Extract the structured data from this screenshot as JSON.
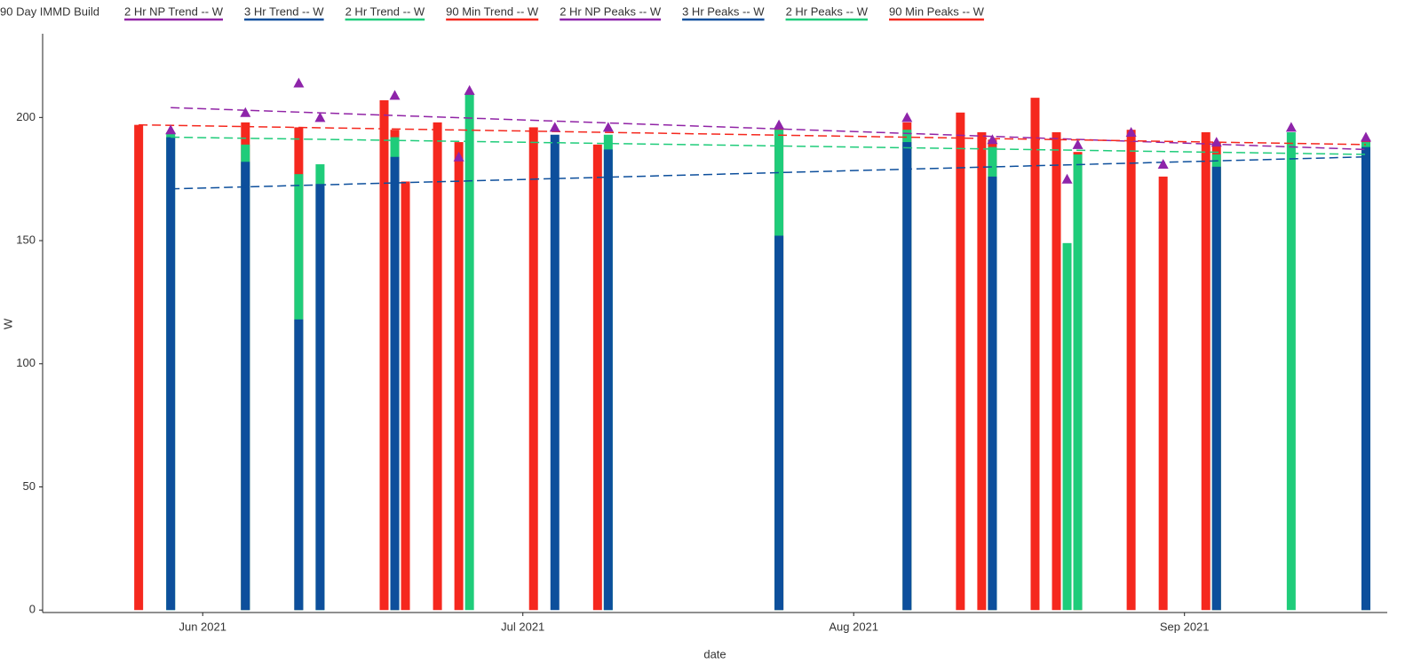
{
  "chart_data": {
    "type": "bar",
    "legend_title": "90 Day IMMD Build",
    "x_label": "date",
    "y_label": "W",
    "x": [
      "2021-05-26",
      "2021-05-29",
      "2021-06-05",
      "2021-06-10",
      "2021-06-12",
      "2021-06-18",
      "2021-06-19",
      "2021-06-20",
      "2021-06-23",
      "2021-06-25",
      "2021-06-26",
      "2021-07-02",
      "2021-07-04",
      "2021-07-08",
      "2021-07-09",
      "2021-07-25",
      "2021-08-06",
      "2021-08-11",
      "2021-08-13",
      "2021-08-14",
      "2021-08-18",
      "2021-08-20",
      "2021-08-21",
      "2021-08-22",
      "2021-08-27",
      "2021-08-30",
      "2021-09-03",
      "2021-09-04",
      "2021-09-11",
      "2021-09-18"
    ],
    "series": [
      {
        "name": "2 Hr NP Trend  -- W",
        "kind": "line",
        "dashed": true,
        "color": "#9124a6",
        "x": [
          "2021-05-29",
          "2021-09-18"
        ],
        "values": [
          204,
          187
        ]
      },
      {
        "name": "3 Hr Trend  -- W",
        "kind": "line",
        "dashed": true,
        "color": "#0d4f9c",
        "x": [
          "2021-05-29",
          "2021-09-18"
        ],
        "values": [
          171,
          184
        ]
      },
      {
        "name": "2 Hr Trend  -- W",
        "kind": "line",
        "dashed": true,
        "color": "#1fcc7a",
        "x": [
          "2021-05-29",
          "2021-09-18"
        ],
        "values": [
          192,
          185
        ]
      },
      {
        "name": "90 Min Trend  -- W",
        "kind": "line",
        "dashed": true,
        "color": "#f5281e",
        "x": [
          "2021-05-26",
          "2021-09-18"
        ],
        "values": [
          197,
          189
        ]
      },
      {
        "name": "2 Hr NP Peaks  -- W",
        "kind": "triangle",
        "color": "#8e24aa",
        "values": [
          null,
          195,
          202,
          214,
          200,
          null,
          209,
          null,
          null,
          184,
          211,
          null,
          196,
          null,
          196,
          197,
          200,
          null,
          null,
          191,
          null,
          null,
          175,
          189,
          194,
          181,
          null,
          190,
          196,
          192
        ]
      },
      {
        "name": "3 Hr Peaks  -- W",
        "kind": "bar",
        "color": "#0d4f9c",
        "values": [
          null,
          192,
          182,
          118,
          173,
          null,
          184,
          null,
          null,
          null,
          null,
          null,
          193,
          null,
          187,
          152,
          190,
          null,
          null,
          176,
          null,
          null,
          null,
          null,
          null,
          null,
          null,
          180,
          null,
          188
        ]
      },
      {
        "name": "2 Hr Peaks  -- W",
        "kind": "bar",
        "color": "#1fcc7a",
        "values": [
          null,
          194,
          189,
          177,
          181,
          null,
          192,
          null,
          null,
          null,
          210,
          null,
          null,
          null,
          193,
          195,
          195,
          null,
          null,
          188,
          null,
          null,
          149,
          185,
          null,
          null,
          null,
          185,
          194,
          190
        ]
      },
      {
        "name": "90 Min Peaks  -- W",
        "kind": "bar",
        "color": "#f5281e",
        "values": [
          197,
          null,
          198,
          196,
          null,
          207,
          195,
          174,
          198,
          190,
          null,
          196,
          null,
          189,
          null,
          196,
          198,
          202,
          194,
          191,
          208,
          194,
          null,
          186,
          195,
          176,
          194,
          190,
          null,
          191
        ]
      }
    ],
    "draw_order": [
      7,
      6,
      5,
      0,
      1,
      2,
      3,
      4
    ],
    "xlim": [
      "2021-05-17",
      "2021-09-20"
    ],
    "xticks": [
      {
        "value": "2021-06-01",
        "label": "Jun 2021"
      },
      {
        "value": "2021-07-01",
        "label": "Jul 2021"
      },
      {
        "value": "2021-08-01",
        "label": "Aug 2021"
      },
      {
        "value": "2021-09-01",
        "label": "Sep 2021"
      }
    ],
    "ylim": [
      -1,
      234
    ],
    "yticks": [
      0,
      50,
      100,
      150,
      200
    ],
    "grid": false
  }
}
